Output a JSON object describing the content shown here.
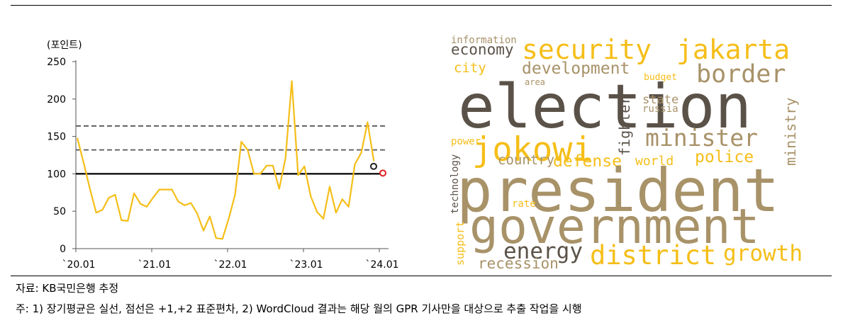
{
  "chart_data": {
    "type": "line",
    "unit_label": "(포인트)",
    "ylim": [
      0,
      250
    ],
    "yticks": [
      0,
      50,
      100,
      150,
      200,
      250
    ],
    "xticks": [
      "`20.01",
      "`21.01",
      "`22.01",
      "`23.01",
      "`24.01"
    ],
    "series": [
      {
        "values": [
          148,
          115,
          80,
          48,
          52,
          68,
          72,
          38,
          37,
          74,
          60,
          56,
          68,
          79,
          79,
          79,
          63,
          58,
          61,
          47,
          24,
          43,
          14,
          13,
          40,
          72,
          143,
          132,
          100,
          100,
          111,
          111,
          80,
          121,
          224,
          98,
          110,
          70,
          49,
          40,
          83,
          48,
          66,
          56,
          113,
          128,
          169,
          117
        ],
        "color": "#f5be18"
      }
    ],
    "reference_lines": [
      {
        "value": 100,
        "style": "solid",
        "color": "#000000"
      },
      {
        "value": 132,
        "style": "dashed",
        "color": "#555555"
      },
      {
        "value": 164,
        "style": "dashed",
        "color": "#555555"
      }
    ],
    "markers": [
      {
        "value": 110,
        "color": "#222222"
      },
      {
        "value": 101,
        "color": "#e02020"
      }
    ]
  },
  "wordcloud": {
    "words": [
      {
        "text": "information",
        "color": "#a89268"
      },
      {
        "text": "economy",
        "color": "#5a5248"
      },
      {
        "text": "security",
        "color": "#f5be18"
      },
      {
        "text": "jakarta",
        "color": "#f5be18"
      },
      {
        "text": "city",
        "color": "#f5be18"
      },
      {
        "text": "development",
        "color": "#a89268"
      },
      {
        "text": "border",
        "color": "#a89268"
      },
      {
        "text": "budget",
        "color": "#f5be18"
      },
      {
        "text": "area",
        "color": "#a89268"
      },
      {
        "text": "election",
        "color": "#5a5248"
      },
      {
        "text": "state",
        "color": "#a89268"
      },
      {
        "text": "russia",
        "color": "#a89268"
      },
      {
        "text": "ministry",
        "color": "#a89268"
      },
      {
        "text": "fighter",
        "color": "#5a5248"
      },
      {
        "text": "minister",
        "color": "#a89268"
      },
      {
        "text": "jokowi",
        "color": "#f5be18"
      },
      {
        "text": "power",
        "color": "#f5be18"
      },
      {
        "text": "police",
        "color": "#f5be18"
      },
      {
        "text": "country",
        "color": "#a89268"
      },
      {
        "text": "defense",
        "color": "#f5be18"
      },
      {
        "text": "world",
        "color": "#f5be18"
      },
      {
        "text": "technology",
        "color": "#5a5248"
      },
      {
        "text": "president",
        "color": "#a89268"
      },
      {
        "text": "rate",
        "color": "#f5be18"
      },
      {
        "text": "government",
        "color": "#a89268"
      },
      {
        "text": "support",
        "color": "#f5be18"
      },
      {
        "text": "energy",
        "color": "#5a5248"
      },
      {
        "text": "district",
        "color": "#f5be18"
      },
      {
        "text": "growth",
        "color": "#f5be18"
      },
      {
        "text": "recession",
        "color": "#a89268"
      }
    ]
  },
  "notes": {
    "source": "자료: KB국민은행 추정",
    "footnote": "주: 1) 장기평균은 실선, 점선은 +1,+2 표준편차, 2) WordCloud 결과는 해당 월의 GPR 기사만을 대상으로 추출 작업을 시행"
  }
}
